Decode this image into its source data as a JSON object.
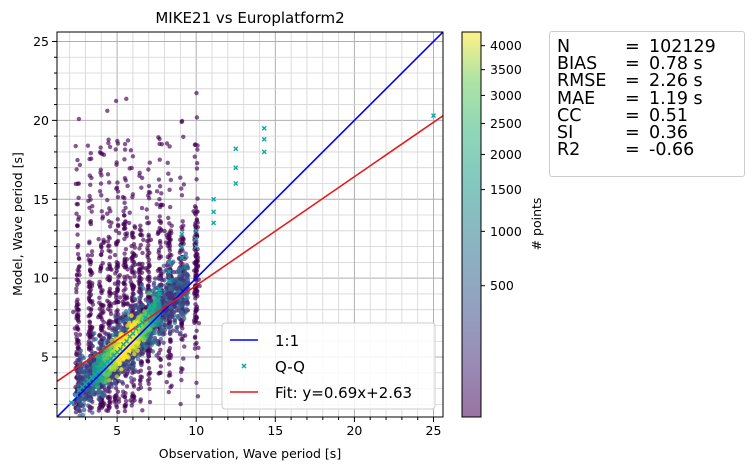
{
  "chart_data": {
    "type": "scatter",
    "title": "MIKE21 vs Europlatform2",
    "xlabel": "Observation, Wave period [s]",
    "ylabel": "Model, Wave period [s]",
    "xlim": [
      1.2,
      25.6
    ],
    "ylim": [
      1.2,
      25.6
    ],
    "xticks": [
      "5",
      "10",
      "15",
      "20",
      "25"
    ],
    "yticks": [
      "5",
      "10",
      "15",
      "20",
      "25"
    ],
    "grid": true,
    "legend_position": "lower-right",
    "legend": [
      {
        "label": "1:1",
        "color": "#0000ff",
        "kind": "line"
      },
      {
        "label": "Q-Q",
        "color": "#11a6a6",
        "kind": "marker"
      },
      {
        "label": "Fit: y=0.69x+2.63",
        "color": "#e31a1c",
        "kind": "line"
      }
    ],
    "one_to_one": {
      "slope": 1,
      "intercept": 0
    },
    "fit_line": {
      "slope": 0.69,
      "intercept": 2.63
    },
    "qq_points": {
      "x": [
        2.1,
        2.4,
        2.6,
        2.8,
        3.0,
        3.2,
        3.4,
        3.6,
        3.8,
        4.0,
        4.2,
        4.4,
        4.6,
        4.8,
        5.0,
        5.2,
        5.4,
        5.6,
        5.8,
        6.0,
        6.2,
        6.4,
        6.6,
        6.8,
        7.0,
        7.1,
        7.1,
        7.6,
        7.7,
        7.7,
        8.3,
        8.3,
        8.3,
        9.1,
        9.1,
        9.1,
        10.0,
        10.0,
        10.0,
        11.1,
        11.1,
        11.1,
        12.5,
        12.5,
        12.5,
        14.3,
        14.3,
        14.3,
        25.0
      ],
      "y": [
        2.1,
        2.6,
        2.9,
        3.1,
        3.3,
        3.5,
        3.7,
        3.9,
        4.1,
        4.3,
        4.5,
        4.7,
        4.9,
        5.1,
        5.3,
        5.5,
        5.8,
        6.0,
        6.3,
        6.5,
        6.8,
        7.0,
        7.2,
        7.5,
        7.8,
        8.0,
        8.3,
        8.6,
        9.0,
        9.3,
        9.8,
        10.4,
        11.0,
        11.3,
        12.0,
        12.8,
        12.0,
        12.5,
        13.0,
        13.5,
        14.2,
        15.0,
        16.0,
        17.0,
        18.2,
        18.0,
        18.8,
        19.5,
        20.3
      ]
    },
    "colorbar": {
      "label": "# points",
      "ticks": [
        "500",
        "1000",
        "1500",
        "2000",
        "2500",
        "3000",
        "3500",
        "4000"
      ],
      "tick_values": [
        500,
        1000,
        1500,
        2000,
        2500,
        3000,
        3500,
        4000
      ],
      "min": 0,
      "max": 4300,
      "colormap": "viridis",
      "scale": "sqrt"
    },
    "statistics": [
      {
        "key": "N",
        "value": "102129"
      },
      {
        "key": "BIAS",
        "value": "0.78 s"
      },
      {
        "key": "RMSE",
        "value": "2.26 s"
      },
      {
        "key": "MAE",
        "value": "1.19 s"
      },
      {
        "key": "CC",
        "value": "0.51"
      },
      {
        "key": "SI",
        "value": "0.36"
      },
      {
        "key": "R2",
        "value": "-0.66"
      }
    ]
  }
}
